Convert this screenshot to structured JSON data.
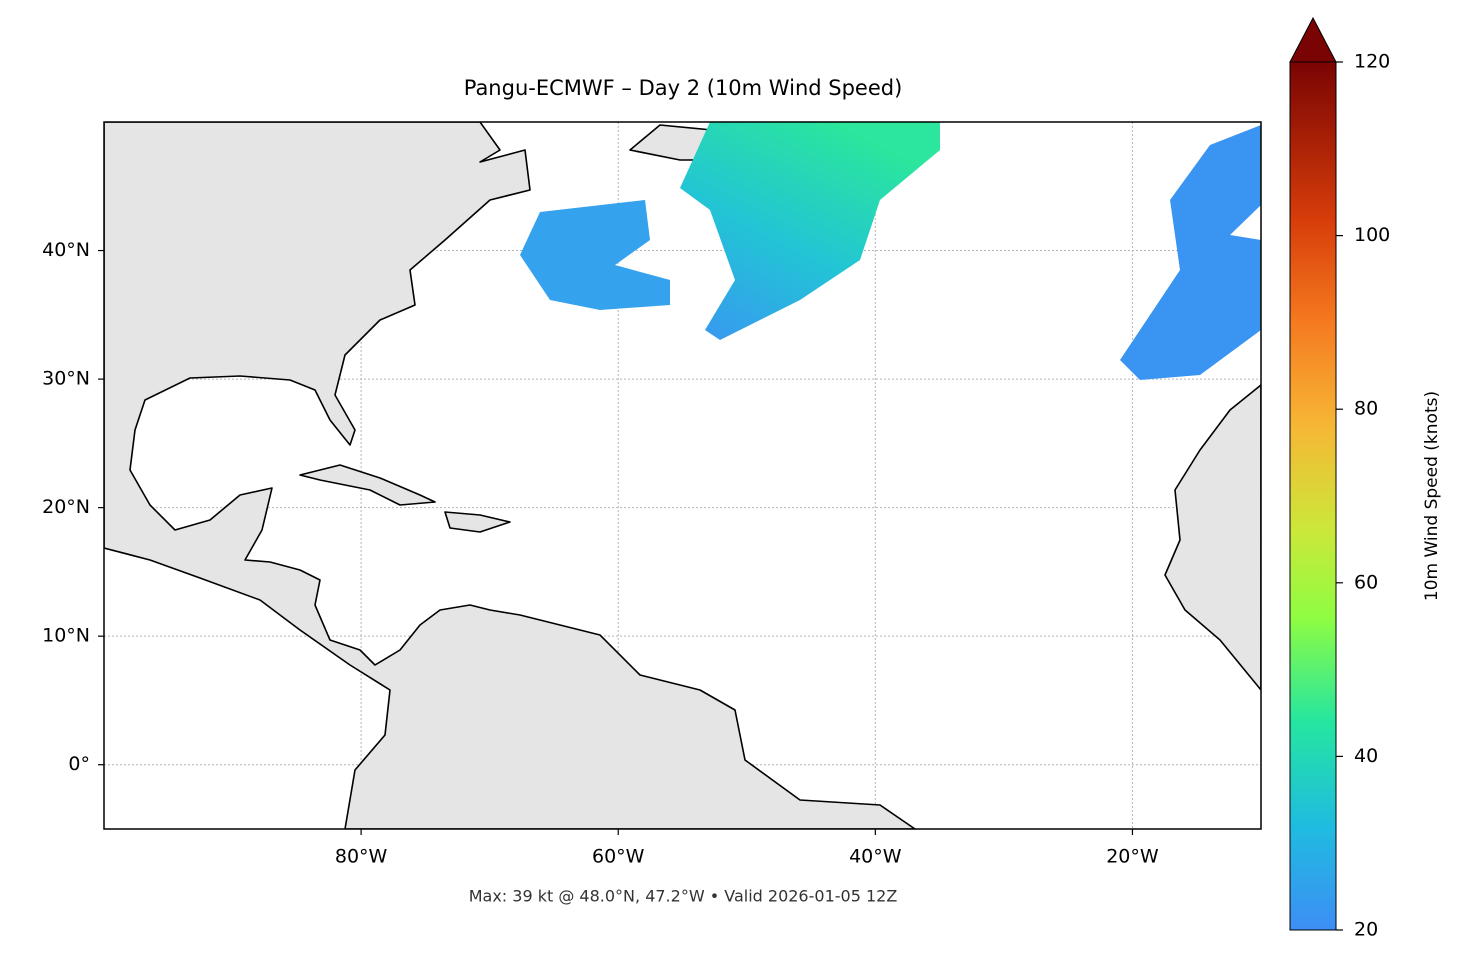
{
  "chart_data": {
    "type": "map",
    "title": "Pangu-ECMWF – Day 2 (10m Wind Speed)",
    "annotation": "Max: 39 kt @ 48.0°N, 47.2°W • Valid 2026-01-05 12Z",
    "xlim": [
      -100,
      -10
    ],
    "ylim": [
      -5,
      50
    ],
    "xticks": [
      {
        "value": -80,
        "label": "80°W"
      },
      {
        "value": -60,
        "label": "60°W"
      },
      {
        "value": -40,
        "label": "40°W"
      },
      {
        "value": -20,
        "label": "20°W"
      }
    ],
    "yticks": [
      {
        "value": 0,
        "label": "0°"
      },
      {
        "value": 10,
        "label": "10°N"
      },
      {
        "value": 20,
        "label": "20°N"
      },
      {
        "value": 30,
        "label": "30°N"
      },
      {
        "value": 40,
        "label": "40°N"
      }
    ],
    "grid": true,
    "colorbar": {
      "label": "10m Wind Speed (knots)",
      "lim": [
        20,
        120
      ],
      "ticks": [
        20,
        40,
        60,
        80,
        100,
        120
      ]
    }
  }
}
